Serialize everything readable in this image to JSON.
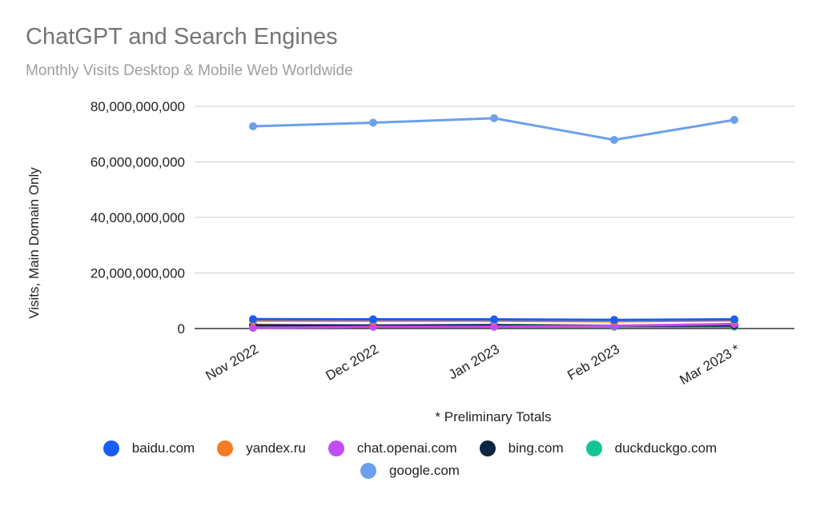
{
  "header": {
    "title": "ChatGPT and Search Engines",
    "subtitle": "Monthly Visits Desktop & Mobile Web Worldwide"
  },
  "footnote": "* Preliminary Totals",
  "chart_data": {
    "type": "line",
    "title": "ChatGPT and Search Engines",
    "subtitle": "Monthly Visits Desktop & Mobile Web Worldwide",
    "xlabel": "",
    "ylabel": "Visits, Main Domain Only",
    "categories": [
      "Nov 2022",
      "Dec 2022",
      "Jan 2023",
      "Feb 2023",
      "Mar 2023 *"
    ],
    "ylim": [
      0,
      80000000000
    ],
    "yticks": [
      "0",
      "20,000,000,000",
      "40,000,000,000",
      "60,000,000,000",
      "80,000,000,000"
    ],
    "grid": true,
    "legend_position": "bottom",
    "annotations": [
      "* Preliminary Totals"
    ],
    "series": [
      {
        "name": "baidu.com",
        "color": "#1a5cf5",
        "values": [
          3400000000,
          3300000000,
          3300000000,
          3100000000,
          3300000000
        ]
      },
      {
        "name": "yandex.ru",
        "color": "#f57c20",
        "values": [
          2800000000,
          2800000000,
          2800000000,
          2600000000,
          2900000000
        ]
      },
      {
        "name": "chat.openai.com",
        "color": "#c34cf5",
        "values": [
          270000000,
          600000000,
          620000000,
          1000000000,
          1600000000
        ]
      },
      {
        "name": "bing.com",
        "color": "#0c2544",
        "values": [
          1200000000,
          1100000000,
          1200000000,
          1000000000,
          1100000000
        ]
      },
      {
        "name": "duckduckgo.com",
        "color": "#12c693",
        "values": [
          700000000,
          700000000,
          700000000,
          650000000,
          700000000
        ]
      },
      {
        "name": "google.com",
        "color": "#6c9fec",
        "values": [
          72800000000,
          74100000000,
          75700000000,
          67900000000,
          75100000000
        ]
      }
    ]
  }
}
